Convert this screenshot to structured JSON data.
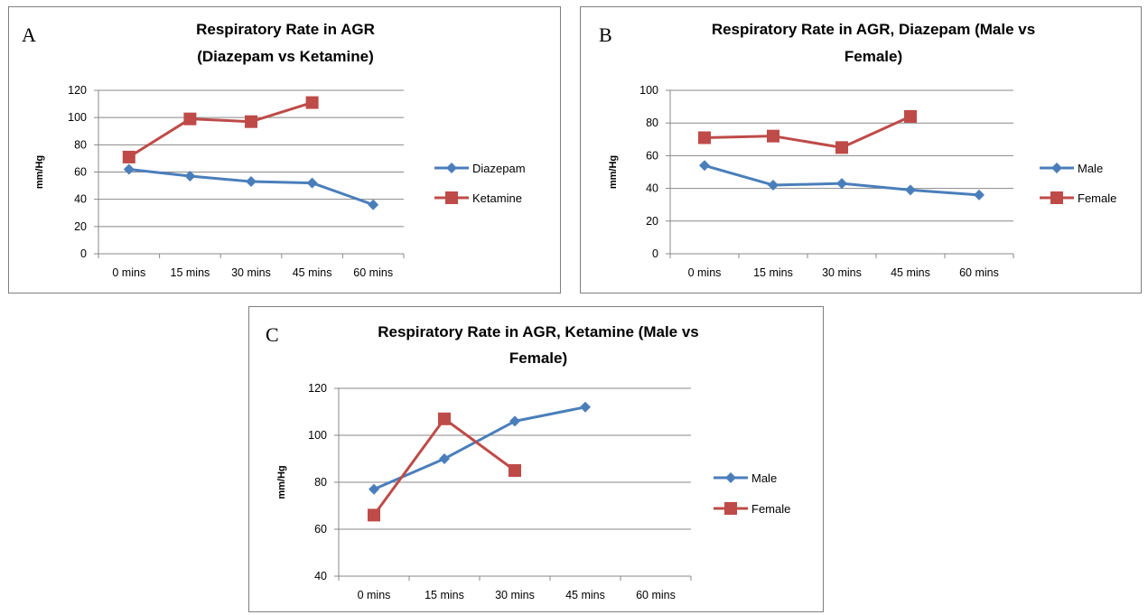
{
  "colors": {
    "blue": "#4a7ebb",
    "red": "#be4b48",
    "grid": "#888888",
    "axis": "#888888"
  },
  "chart_data": [
    {
      "panel_letter": "A",
      "type": "line",
      "title_lines": [
        "Respiratory Rate in AGR",
        "(Diazepam vs Ketamine)"
      ],
      "xlabel": "",
      "ylabel": "mm/Hg",
      "categories": [
        "0 mins",
        "15 mins",
        "30 mins",
        "45 mins",
        "60 mins"
      ],
      "ylim": [
        0,
        120
      ],
      "yticks": [
        0,
        20,
        40,
        60,
        80,
        100,
        120
      ],
      "grid": true,
      "legend_position": "right",
      "series": [
        {
          "name": "Diazepam",
          "color": "blue",
          "marker": "diamond",
          "values": [
            62,
            57,
            53,
            52,
            36
          ]
        },
        {
          "name": "Ketamine",
          "color": "red",
          "marker": "square",
          "values": [
            71,
            99,
            97,
            111,
            null
          ]
        }
      ]
    },
    {
      "panel_letter": "B",
      "type": "line",
      "title_lines": [
        "Respiratory Rate in AGR, Diazepam (Male vs",
        "Female)"
      ],
      "xlabel": "",
      "ylabel": "mm/Hg",
      "categories": [
        "0 mins",
        "15 mins",
        "30 mins",
        "45 mins",
        "60 mins"
      ],
      "ylim": [
        0,
        100
      ],
      "yticks": [
        0,
        20,
        40,
        60,
        80,
        100
      ],
      "grid": true,
      "legend_position": "right",
      "series": [
        {
          "name": "Male",
          "color": "blue",
          "marker": "diamond",
          "values": [
            54,
            42,
            43,
            39,
            36
          ]
        },
        {
          "name": "Female",
          "color": "red",
          "marker": "square",
          "values": [
            71,
            72,
            65,
            84,
            null
          ]
        }
      ]
    },
    {
      "panel_letter": "C",
      "type": "line",
      "title_lines": [
        "Respiratory Rate in AGR, Ketamine (Male vs",
        "Female)"
      ],
      "xlabel": "",
      "ylabel": "mm/Hg",
      "categories": [
        "0 mins",
        "15 mins",
        "30 mins",
        "45 mins",
        "60 mins"
      ],
      "ylim": [
        40,
        120
      ],
      "yticks": [
        40,
        60,
        80,
        100,
        120
      ],
      "grid": true,
      "legend_position": "right",
      "series": [
        {
          "name": "Male",
          "color": "blue",
          "marker": "diamond",
          "values": [
            77,
            90,
            106,
            112,
            null
          ]
        },
        {
          "name": "Female",
          "color": "red",
          "marker": "square",
          "values": [
            66,
            107,
            85,
            null,
            null
          ]
        }
      ]
    }
  ]
}
